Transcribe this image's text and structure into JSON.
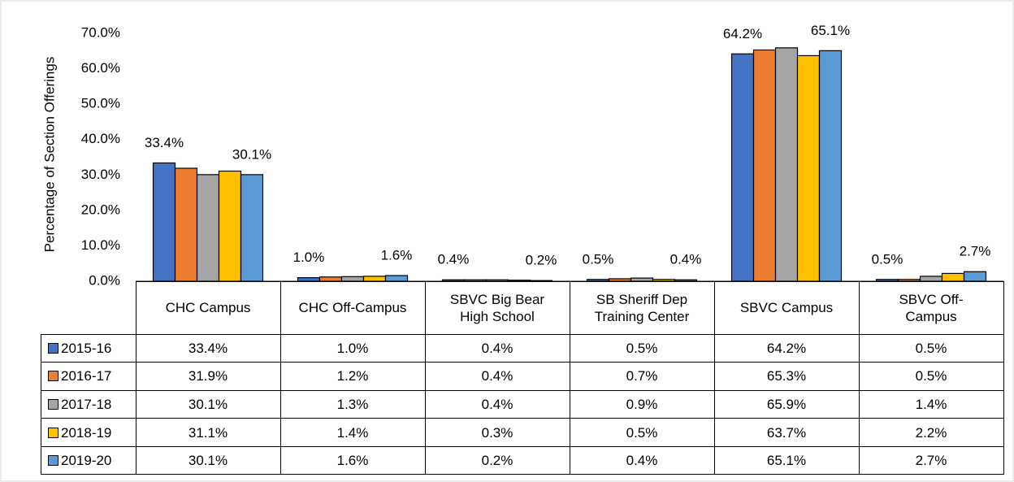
{
  "chart_data": {
    "type": "bar",
    "y_label": "Percentage of Section Offerings",
    "categories": [
      "CHC Campus",
      "CHC Off-Campus",
      "SBVC Big Bear\nHigh School",
      "SB Sheriff Dep\nTraining Center",
      "SBVC Campus",
      "SBVC Off-\nCampus"
    ],
    "series": [
      {
        "name": "2015-16",
        "color": "#4472c4",
        "show_labels": true,
        "values": [
          33.4,
          1.0,
          0.4,
          0.5,
          64.2,
          0.5
        ],
        "value_labels": [
          "33.4%",
          "1.0%",
          "0.4%",
          "0.5%",
          "64.2%",
          "0.5%"
        ]
      },
      {
        "name": "2016-17",
        "color": "#ed7d31",
        "show_labels": false,
        "values": [
          31.9,
          1.2,
          0.4,
          0.7,
          65.3,
          0.5
        ],
        "value_labels": [
          "31.9%",
          "1.2%",
          "0.4%",
          "0.7%",
          "65.3%",
          "0.5%"
        ]
      },
      {
        "name": "2017-18",
        "color": "#a5a5a5",
        "show_labels": false,
        "values": [
          30.1,
          1.3,
          0.4,
          0.9,
          65.9,
          1.4
        ],
        "value_labels": [
          "30.1%",
          "1.3%",
          "0.4%",
          "0.9%",
          "65.9%",
          "1.4%"
        ]
      },
      {
        "name": "2018-19",
        "color": "#ffc000",
        "show_labels": false,
        "values": [
          31.1,
          1.4,
          0.3,
          0.5,
          63.7,
          2.2
        ],
        "value_labels": [
          "31.1%",
          "1.4%",
          "0.3%",
          "0.5%",
          "63.7%",
          "2.2%"
        ]
      },
      {
        "name": "2019-20",
        "color": "#5b9bd5",
        "show_labels": true,
        "values": [
          30.1,
          1.6,
          0.2,
          0.4,
          65.1,
          2.7
        ],
        "value_labels": [
          "30.1%",
          "1.6%",
          "0.2%",
          "0.4%",
          "65.1%",
          "2.7%"
        ]
      }
    ],
    "ylim": [
      0,
      70
    ],
    "yticks": [
      {
        "value": 0,
        "label": "0.0%"
      },
      {
        "value": 10,
        "label": "10.0%"
      },
      {
        "value": 20,
        "label": "20.0%"
      },
      {
        "value": 30,
        "label": "30.0%"
      },
      {
        "value": 40,
        "label": "40.0%"
      },
      {
        "value": 50,
        "label": "50.0%"
      },
      {
        "value": 60,
        "label": "60.0%"
      },
      {
        "value": 70,
        "label": "70.0%"
      }
    ],
    "grid": false
  }
}
